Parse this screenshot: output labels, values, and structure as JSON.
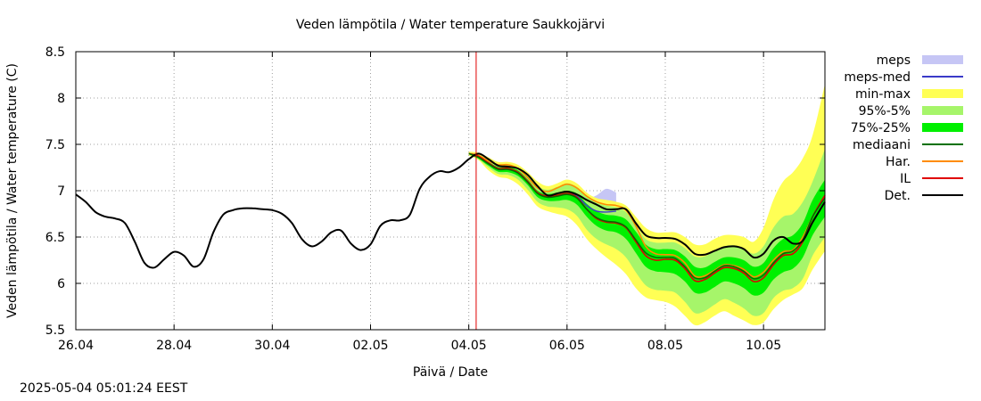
{
  "chart_data": {
    "type": "line",
    "title": "Veden lämpötila / Water temperature Saukkojärvi",
    "xlabel": "Päivä / Date",
    "ylabel": "Veden lämpötila / Water temperature (C)",
    "x_unit": "days since 26.04 00:00",
    "xlim": [
      0,
      15.25
    ],
    "ylim": [
      5.5,
      8.5
    ],
    "yticks": [
      "5.5",
      "6",
      "6.5",
      "7",
      "7.5",
      "8",
      "8.5"
    ],
    "xticks": [
      {
        "label": "26.04",
        "x": 0
      },
      {
        "label": "28.04",
        "x": 2
      },
      {
        "label": "30.04",
        "x": 4
      },
      {
        "label": "02.05",
        "x": 6
      },
      {
        "label": "04.05",
        "x": 8
      },
      {
        "label": "06.05",
        "x": 10
      },
      {
        "label": "08.05",
        "x": 12
      },
      {
        "label": "10.05",
        "x": 14
      }
    ],
    "grid": true,
    "legend_position": "right",
    "forecast_start_x": 8.15,
    "legend": [
      {
        "label": "meps",
        "kind": "band",
        "color": "#c6c6f5"
      },
      {
        "label": "meps-med",
        "kind": "line",
        "color": "#3a3ac8"
      },
      {
        "label": "min-max",
        "kind": "band",
        "color": "#ffff55"
      },
      {
        "label": "95%-5%",
        "kind": "band",
        "color": "#a6f56a"
      },
      {
        "label": "75%-25%",
        "kind": "band",
        "color": "#00f000"
      },
      {
        "label": "mediaani",
        "kind": "line",
        "color": "#007000"
      },
      {
        "label": "Har.",
        "kind": "line",
        "color": "#ff8c00"
      },
      {
        "label": "IL",
        "kind": "line",
        "color": "#e00000"
      },
      {
        "label": "Det.",
        "kind": "line",
        "color": "#000000"
      }
    ],
    "series": [
      {
        "name": "Det.",
        "x": [
          0,
          0.2,
          0.4,
          0.6,
          0.8,
          1.0,
          1.2,
          1.4,
          1.6,
          1.8,
          2.0,
          2.2,
          2.4,
          2.6,
          2.8,
          3.0,
          3.2,
          3.4,
          3.6,
          3.8,
          4.0,
          4.2,
          4.4,
          4.6,
          4.8,
          5.0,
          5.2,
          5.4,
          5.6,
          5.8,
          6.0,
          6.2,
          6.4,
          6.6,
          6.8,
          7.0,
          7.2,
          7.4,
          7.6,
          7.8,
          8.0,
          8.2,
          8.4,
          8.6,
          8.8,
          9.0,
          9.2,
          9.4,
          9.6,
          9.8,
          10.0,
          10.2,
          10.4,
          10.6,
          10.8,
          11.0,
          11.2,
          11.4,
          11.6,
          11.8,
          12.0,
          12.2,
          12.4,
          12.6,
          12.8,
          13.0,
          13.2,
          13.4,
          13.6,
          13.8,
          14.0,
          14.2,
          14.4,
          14.6,
          14.8,
          15.0,
          15.25
        ],
        "values": [
          6.96,
          6.88,
          6.77,
          6.72,
          6.7,
          6.65,
          6.45,
          6.22,
          6.17,
          6.26,
          6.34,
          6.3,
          6.18,
          6.26,
          6.55,
          6.74,
          6.79,
          6.81,
          6.81,
          6.8,
          6.79,
          6.75,
          6.65,
          6.48,
          6.4,
          6.45,
          6.55,
          6.57,
          6.43,
          6.36,
          6.42,
          6.62,
          6.68,
          6.68,
          6.74,
          7.02,
          7.15,
          7.21,
          7.2,
          7.25,
          7.34,
          7.4,
          7.34,
          7.27,
          7.26,
          7.24,
          7.17,
          7.05,
          6.95,
          6.97,
          6.99,
          6.96,
          6.9,
          6.85,
          6.8,
          6.8,
          6.8,
          6.65,
          6.52,
          6.49,
          6.49,
          6.48,
          6.42,
          6.32,
          6.31,
          6.35,
          6.39,
          6.4,
          6.37,
          6.28,
          6.32,
          6.46,
          6.5,
          6.43,
          6.46,
          6.66,
          6.88
        ]
      },
      {
        "name": "IL",
        "x": [
          8.0,
          8.2,
          8.4,
          8.6,
          8.8,
          9.0,
          9.2,
          9.4,
          9.6,
          9.8,
          10.0,
          10.2,
          10.4,
          10.6,
          10.8,
          11.0,
          11.2,
          11.4,
          11.6,
          11.8,
          12.0,
          12.2,
          12.4,
          12.6,
          12.8,
          13.0,
          13.2,
          13.4,
          13.6,
          13.8,
          14.0,
          14.2,
          14.4,
          14.6,
          14.8,
          15.0,
          15.25
        ],
        "values": [
          7.4,
          7.37,
          7.3,
          7.24,
          7.24,
          7.2,
          7.1,
          6.98,
          6.94,
          6.95,
          6.97,
          6.93,
          6.8,
          6.7,
          6.66,
          6.65,
          6.6,
          6.45,
          6.3,
          6.25,
          6.26,
          6.25,
          6.16,
          6.03,
          6.04,
          6.11,
          6.17,
          6.16,
          6.11,
          6.02,
          6.06,
          6.2,
          6.3,
          6.32,
          6.45,
          6.72,
          6.95
        ]
      },
      {
        "name": "Har.",
        "x": [
          8.0,
          8.2,
          8.4,
          8.6,
          8.8,
          9.0,
          9.2,
          9.4,
          9.6,
          9.8,
          10.0,
          10.2,
          10.4,
          10.6,
          10.8,
          11.0,
          11.2,
          11.4,
          11.6,
          11.8,
          12.0,
          12.2,
          12.4,
          12.6,
          12.8,
          13.0,
          13.2,
          13.4,
          13.6,
          13.8,
          14.0,
          14.2,
          14.4,
          14.6,
          14.8,
          15.0,
          15.25
        ],
        "values": [
          7.4,
          7.38,
          7.32,
          7.28,
          7.28,
          7.24,
          7.14,
          7.03,
          6.99,
          7.03,
          7.07,
          7.03,
          6.94,
          6.88,
          6.85,
          6.84,
          6.79,
          6.62,
          6.4,
          6.32,
          6.31,
          6.3,
          6.22,
          6.08,
          6.08,
          6.14,
          6.2,
          6.19,
          6.15,
          6.07,
          6.12,
          6.25,
          6.34,
          6.36,
          6.5,
          6.72,
          6.93
        ]
      },
      {
        "name": "mediaani",
        "x": [
          8.0,
          8.2,
          8.4,
          8.6,
          8.8,
          9.0,
          9.2,
          9.4,
          9.6,
          9.8,
          10.0,
          10.2,
          10.4,
          10.6,
          10.8,
          11.0,
          11.2,
          11.4,
          11.6,
          11.8,
          12.0,
          12.2,
          12.4,
          12.6,
          12.8,
          13.0,
          13.2,
          13.4,
          13.6,
          13.8,
          14.0,
          14.2,
          14.4,
          14.6,
          14.8,
          15.0,
          15.25
        ],
        "values": [
          7.4,
          7.36,
          7.29,
          7.23,
          7.23,
          7.19,
          7.09,
          6.97,
          6.93,
          6.94,
          6.96,
          6.92,
          6.8,
          6.71,
          6.67,
          6.66,
          6.61,
          6.47,
          6.33,
          6.28,
          6.28,
          6.27,
          6.18,
          6.06,
          6.06,
          6.13,
          6.19,
          6.18,
          6.13,
          6.05,
          6.09,
          6.22,
          6.32,
          6.35,
          6.47,
          6.72,
          6.92
        ]
      },
      {
        "name": "meps-med",
        "x": [
          8.0,
          8.2,
          8.4,
          8.6,
          8.8,
          9.0,
          9.2,
          9.4,
          9.6,
          9.8,
          10.0,
          10.2,
          10.4,
          10.6,
          10.8,
          11.0
        ],
        "values": [
          7.4,
          7.37,
          7.3,
          7.24,
          7.23,
          7.2,
          7.1,
          6.98,
          6.94,
          6.95,
          6.97,
          6.94,
          6.84,
          6.78,
          6.77,
          6.78
        ]
      }
    ],
    "bands": [
      {
        "name": "meps",
        "x": [
          8.0,
          8.2,
          8.4,
          8.6,
          8.8,
          9.0,
          9.2,
          9.4,
          9.6,
          9.8,
          10.0,
          10.2,
          10.4,
          10.6,
          10.8,
          11.0
        ],
        "upper": [
          7.41,
          7.39,
          7.33,
          7.28,
          7.28,
          7.25,
          7.15,
          7.04,
          7.0,
          7.02,
          7.04,
          7.0,
          6.92,
          6.95,
          7.02,
          6.98
        ],
        "lower": [
          7.39,
          7.35,
          7.26,
          7.21,
          7.2,
          7.16,
          7.06,
          6.94,
          6.9,
          6.91,
          6.92,
          6.88,
          6.76,
          6.68,
          6.66,
          6.62
        ]
      },
      {
        "name": "min-max",
        "x": [
          8.0,
          8.2,
          8.4,
          8.6,
          8.8,
          9.0,
          9.2,
          9.4,
          9.6,
          9.8,
          10.0,
          10.2,
          10.4,
          10.6,
          10.8,
          11.0,
          11.2,
          11.4,
          11.6,
          11.8,
          12.0,
          12.2,
          12.4,
          12.6,
          12.8,
          13.0,
          13.2,
          13.4,
          13.6,
          13.8,
          14.0,
          14.2,
          14.4,
          14.6,
          14.8,
          15.0,
          15.25
        ],
        "upper": [
          7.42,
          7.41,
          7.36,
          7.31,
          7.31,
          7.28,
          7.2,
          7.1,
          7.05,
          7.08,
          7.12,
          7.08,
          6.98,
          6.92,
          6.9,
          6.88,
          6.84,
          6.72,
          6.6,
          6.55,
          6.55,
          6.55,
          6.5,
          6.42,
          6.42,
          6.48,
          6.52,
          6.52,
          6.5,
          6.45,
          6.6,
          6.9,
          7.1,
          7.2,
          7.35,
          7.6,
          8.15
        ],
        "lower": [
          7.38,
          7.33,
          7.22,
          7.15,
          7.13,
          7.07,
          6.96,
          6.83,
          6.78,
          6.75,
          6.72,
          6.63,
          6.48,
          6.37,
          6.28,
          6.2,
          6.1,
          5.95,
          5.85,
          5.82,
          5.8,
          5.75,
          5.65,
          5.55,
          5.58,
          5.65,
          5.7,
          5.65,
          5.6,
          5.55,
          5.58,
          5.72,
          5.82,
          5.88,
          5.95,
          6.15,
          6.35
        ]
      },
      {
        "name": "95%-5%",
        "x": [
          8.0,
          8.2,
          8.4,
          8.6,
          8.8,
          9.0,
          9.2,
          9.4,
          9.6,
          9.8,
          10.0,
          10.2,
          10.4,
          10.6,
          10.8,
          11.0,
          11.2,
          11.4,
          11.6,
          11.8,
          12.0,
          12.2,
          12.4,
          12.6,
          12.8,
          13.0,
          13.2,
          13.4,
          13.6,
          13.8,
          14.0,
          14.2,
          14.4,
          14.6,
          14.8,
          15.0,
          15.25
        ],
        "upper": [
          7.41,
          7.39,
          7.33,
          7.28,
          7.28,
          7.25,
          7.16,
          7.05,
          7.01,
          7.04,
          7.08,
          7.04,
          6.94,
          6.87,
          6.84,
          6.82,
          6.77,
          6.62,
          6.48,
          6.44,
          6.44,
          6.44,
          6.38,
          6.29,
          6.29,
          6.35,
          6.4,
          6.41,
          6.38,
          6.32,
          6.4,
          6.6,
          6.72,
          6.75,
          6.88,
          7.1,
          7.45
        ],
        "lower": [
          7.39,
          7.34,
          7.25,
          7.18,
          7.17,
          7.12,
          7.01,
          6.88,
          6.83,
          6.82,
          6.8,
          6.73,
          6.58,
          6.48,
          6.42,
          6.37,
          6.28,
          6.12,
          5.98,
          5.93,
          5.92,
          5.9,
          5.8,
          5.68,
          5.7,
          5.77,
          5.83,
          5.79,
          5.73,
          5.65,
          5.68,
          5.84,
          5.92,
          5.95,
          6.05,
          6.3,
          6.5
        ]
      },
      {
        "name": "75%-25%",
        "x": [
          8.0,
          8.2,
          8.4,
          8.6,
          8.8,
          9.0,
          9.2,
          9.4,
          9.6,
          9.8,
          10.0,
          10.2,
          10.4,
          10.6,
          10.8,
          11.0,
          11.2,
          11.4,
          11.6,
          11.8,
          12.0,
          12.2,
          12.4,
          12.6,
          12.8,
          13.0,
          13.2,
          13.4,
          13.6,
          13.8,
          14.0,
          14.2,
          14.4,
          14.6,
          14.8,
          15.0,
          15.25
        ],
        "upper": [
          7.405,
          7.375,
          7.31,
          7.255,
          7.255,
          7.22,
          7.12,
          7.0,
          6.965,
          6.98,
          7.0,
          6.97,
          6.86,
          6.78,
          6.74,
          6.73,
          6.69,
          6.56,
          6.42,
          6.37,
          6.37,
          6.36,
          6.29,
          6.18,
          6.17,
          6.23,
          6.28,
          6.28,
          6.25,
          6.18,
          6.22,
          6.38,
          6.48,
          6.52,
          6.65,
          6.9,
          7.12
        ],
        "lower": [
          7.395,
          7.345,
          7.27,
          7.205,
          7.2,
          7.16,
          7.06,
          6.93,
          6.89,
          6.89,
          6.9,
          6.85,
          6.72,
          6.62,
          6.57,
          6.55,
          6.48,
          6.33,
          6.18,
          6.13,
          6.12,
          6.1,
          6.02,
          5.9,
          5.9,
          5.96,
          6.02,
          6.0,
          5.95,
          5.87,
          5.9,
          6.04,
          6.12,
          6.16,
          6.28,
          6.52,
          6.72
        ]
      }
    ]
  },
  "footer": {
    "timestamp": "2025-05-04  05:01:24 EEST"
  }
}
